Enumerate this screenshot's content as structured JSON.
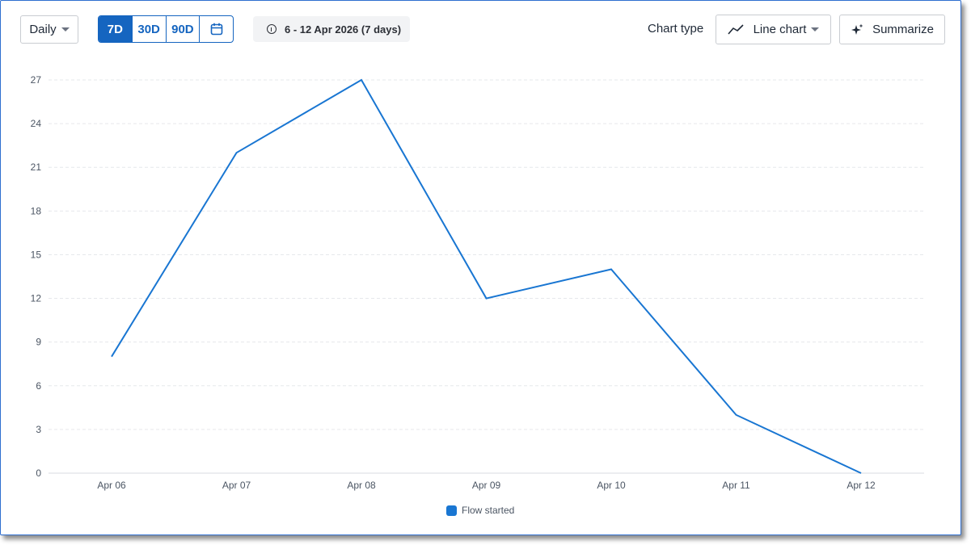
{
  "toolbar": {
    "granularity": "Daily",
    "ranges": [
      "7D",
      "30D",
      "90D"
    ],
    "active_range": "7D",
    "date_range": "6 - 12 Apr 2026 (7 days)",
    "chart_type_label": "Chart type",
    "chart_type_value": "Line chart",
    "summarize_label": "Summarize"
  },
  "icons": {
    "calendar": "calendar-icon",
    "info": "info-icon",
    "line_chart": "line-chart-icon",
    "sparkle": "sparkle-icon"
  },
  "colors": {
    "accent": "#1565c0",
    "series": "#1976d2"
  },
  "chart_data": {
    "type": "line",
    "categories": [
      "Apr 06",
      "Apr 07",
      "Apr 08",
      "Apr 09",
      "Apr 10",
      "Apr 11",
      "Apr 12"
    ],
    "series": [
      {
        "name": "Flow started",
        "values": [
          8,
          22,
          27,
          12,
          14,
          4,
          0
        ]
      }
    ],
    "yticks": [
      0,
      3,
      6,
      9,
      12,
      15,
      18,
      21,
      24,
      27
    ],
    "ylim": [
      0,
      27
    ],
    "grid": true,
    "legend": "bottom"
  }
}
